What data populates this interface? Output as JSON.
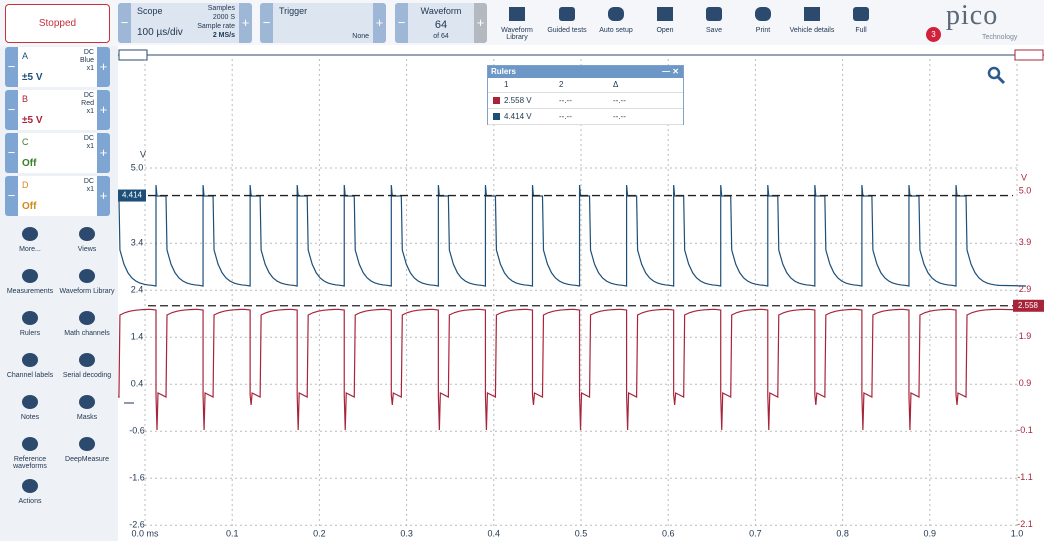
{
  "toolbar": {
    "status": "Stopped",
    "scope": {
      "label": "Scope",
      "timebase": "100 µs/div",
      "samples_label": "Samples",
      "samples": "2000 S",
      "rate_label": "Sample rate",
      "rate": "2 MS/s"
    },
    "trigger": {
      "label": "Trigger",
      "mode": "None"
    },
    "waveform": {
      "label": "Waveform",
      "current": "64",
      "total": "of 64"
    },
    "buttons": [
      "Waveform Library",
      "Guided tests",
      "Auto setup",
      "Open",
      "Save",
      "Print",
      "Vehicle details",
      "Full"
    ],
    "notifications": "3",
    "logo": "pico",
    "logo_sub": "Technology"
  },
  "channels": [
    {
      "name": "A",
      "coupling": "DC",
      "color_name": "Blue",
      "probe": "x1",
      "range": "±5 V",
      "color": "#1d4f78"
    },
    {
      "name": "B",
      "coupling": "DC",
      "color_name": "Red",
      "probe": "x1",
      "range": "±5 V",
      "color": "#a8243a"
    },
    {
      "name": "C",
      "coupling": "DC",
      "probe": "x1",
      "range": "Off",
      "color": "#3a7d2c"
    },
    {
      "name": "D",
      "coupling": "DC",
      "probe": "x1",
      "range": "Off",
      "color": "#d08a1c"
    }
  ],
  "tools": [
    "More...",
    "Views",
    "Measurements",
    "Waveform Library",
    "Rulers",
    "Math channels",
    "Channel labels",
    "Serial decoding",
    "Notes",
    "Masks",
    "Reference waveforms",
    "DeepMeasure",
    "Actions"
  ],
  "plot": {
    "y_unit": "V",
    "y2_unit": "V",
    "yticks": [
      {
        "value": 5,
        "label": "5.0"
      },
      3.4,
      2.4,
      1.4,
      0.4,
      -0.6,
      -1.6,
      -2.6
    ],
    "y2ticks": [
      {
        "value": 5,
        "label": "5.0"
      },
      3.9,
      2.9,
      1.9,
      0.9,
      -0.1,
      -1.1,
      -2.1
    ],
    "xticks": [
      {
        "value": 0,
        "label": "0.0 ms"
      },
      0.1,
      0.2,
      0.3,
      0.4,
      0.5,
      0.6,
      0.7,
      0.8,
      0.9,
      {
        "value": 1,
        "label": "1.0"
      }
    ],
    "ruler_a": 4.414,
    "ruler_b": 2.558
  },
  "rulers": {
    "title": "Rulers",
    "headers": [
      "1",
      "2",
      "Δ"
    ],
    "rows": [
      [
        "2.558 V",
        "--.--",
        "--.--"
      ],
      [
        "4.414 V",
        "--.--",
        "--.--"
      ]
    ]
  }
}
